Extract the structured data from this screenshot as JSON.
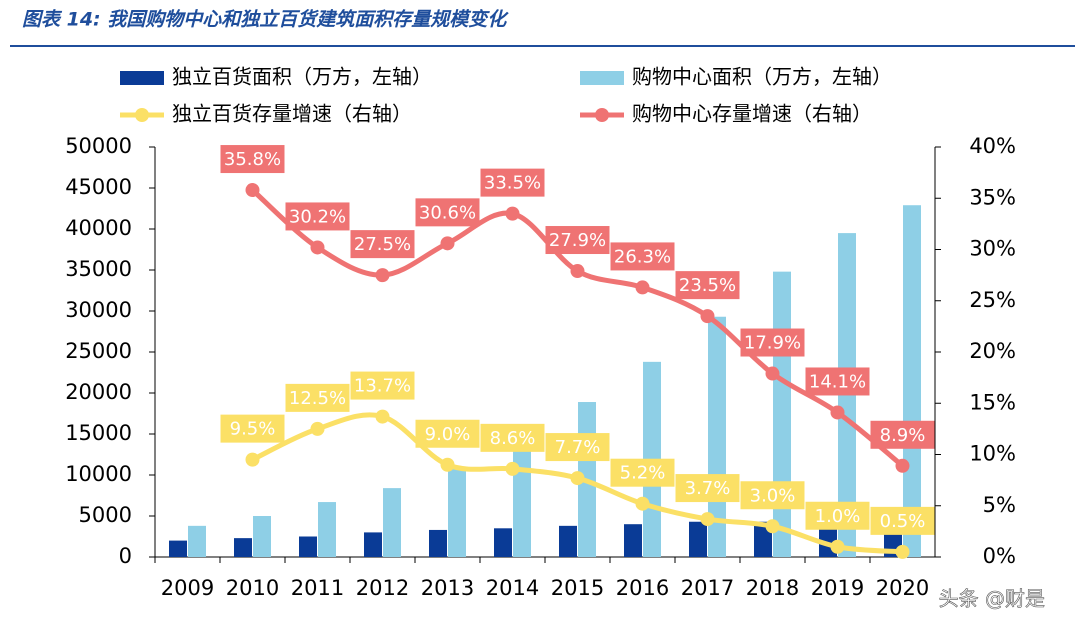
{
  "chart_data": {
    "type": "bar_line",
    "title": "图表 14: 我国购物中心和独立百货建筑面积存量规模变化",
    "watermark": "头条 @财是",
    "categories": [
      "2009",
      "2010",
      "2011",
      "2012",
      "2013",
      "2014",
      "2015",
      "2016",
      "2017",
      "2018",
      "2019",
      "2020"
    ],
    "ylim": [
      0,
      50000
    ],
    "yticks": [
      0,
      5000,
      10000,
      15000,
      20000,
      25000,
      30000,
      35000,
      40000,
      45000,
      50000
    ],
    "y2lim": [
      0,
      40
    ],
    "y2ticks": [
      {
        "value": 0,
        "label": "0%"
      },
      {
        "value": 5,
        "label": "5%"
      },
      {
        "value": 10,
        "label": "10%"
      },
      {
        "value": 15,
        "label": "15%"
      },
      {
        "value": 20,
        "label": "20%"
      },
      {
        "value": 25,
        "label": "25%"
      },
      {
        "value": 30,
        "label": "30%"
      },
      {
        "value": 35,
        "label": "35%"
      },
      {
        "value": 40,
        "label": "40%"
      }
    ],
    "series": [
      {
        "name": "独立百货面积（万方，左轴）",
        "kind": "bar",
        "color": "#0a3b96",
        "values": [
          2000,
          2300,
          2500,
          3000,
          3300,
          3500,
          3800,
          4000,
          4300,
          4300,
          3800,
          3500
        ]
      },
      {
        "name": "购物中心面积（万方，左轴）",
        "kind": "bar",
        "color": "#8ecfe6",
        "values": [
          3800,
          5000,
          6700,
          8400,
          11000,
          13500,
          18900,
          23800,
          29300,
          34800,
          39500,
          42900
        ]
      },
      {
        "name": "独立百货存量增速（右轴）",
        "kind": "line",
        "axis": "y2",
        "color": "#fbe066",
        "values": [
          null,
          9.5,
          12.5,
          13.7,
          9.0,
          8.6,
          7.7,
          5.2,
          3.7,
          3.0,
          1.0,
          0.5
        ],
        "value_labels": [
          null,
          "9.5%",
          "12.5%",
          "13.7%",
          "9.0%",
          "8.6%",
          "7.7%",
          "5.2%",
          "3.7%",
          "3.0%",
          "1.0%",
          "0.5%"
        ]
      },
      {
        "name": "购物中心存量增速（右轴）",
        "kind": "line",
        "axis": "y2",
        "color": "#ef7373",
        "values": [
          null,
          35.8,
          30.2,
          27.5,
          30.6,
          33.5,
          27.9,
          26.3,
          23.5,
          17.9,
          14.1,
          8.9
        ],
        "value_labels": [
          null,
          "35.8%",
          "30.2%",
          "27.5%",
          "30.6%",
          "33.5%",
          "27.9%",
          "26.3%",
          "23.5%",
          "17.9%",
          "14.1%",
          "8.9%"
        ]
      }
    ]
  }
}
